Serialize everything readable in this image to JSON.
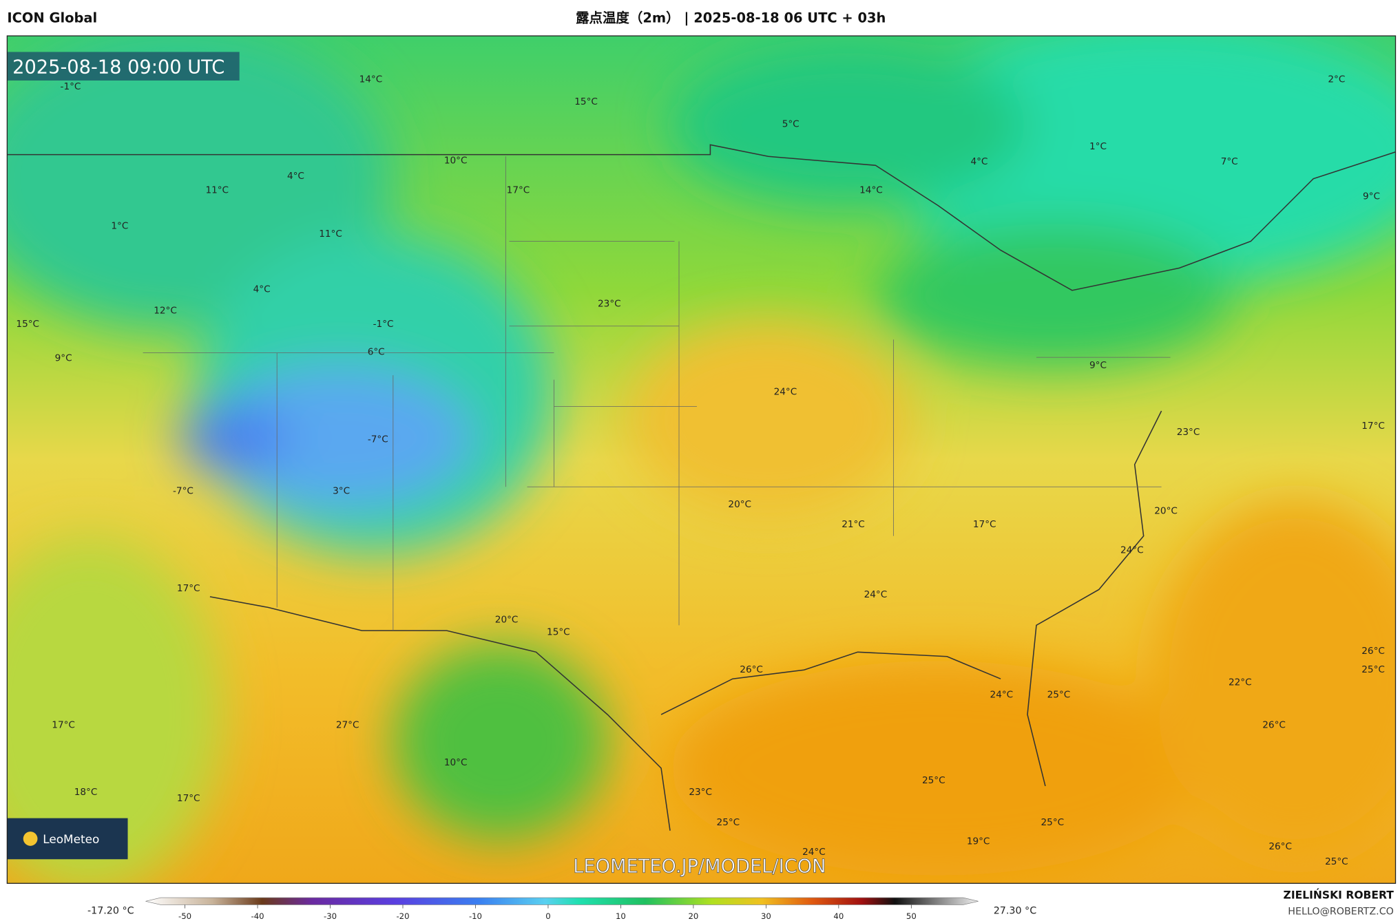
{
  "header": {
    "model": "ICON Global",
    "title": "露点温度（2m） | 2025-08-18 06 UTC + 03h"
  },
  "map": {
    "valid_time": "2025-08-18 09:00 UTC",
    "watermark": "LEOMETEO.JP/MODEL/ICON",
    "logo": "LeoMeteo",
    "labels": [
      "-1°C",
      "14°C",
      "15°C",
      "5°C",
      "2°C",
      "1°C",
      "4°C",
      "7°C",
      "9°C",
      "14°C",
      "10°C",
      "17°C",
      "4°C",
      "11°C",
      "1°C",
      "11°C",
      "4°C",
      "12°C",
      "-1°C",
      "6°C",
      "15°C",
      "9°C",
      "23°C",
      "24°C",
      "9°C",
      "17°C",
      "23°C",
      "-7°C",
      "3°C",
      "-7°C",
      "20°C",
      "21°C",
      "17°C",
      "20°C",
      "24°C",
      "17°C",
      "20°C",
      "15°C",
      "24°C",
      "26°C",
      "24°C",
      "25°C",
      "22°C",
      "26°C",
      "25°C",
      "17°C",
      "27°C",
      "26°C",
      "10°C",
      "25°C",
      "18°C",
      "17°C",
      "23°C",
      "25°C",
      "25°C",
      "24°C",
      "19°C",
      "26°C",
      "25°C"
    ]
  },
  "colorbar": {
    "min_label": "-17.20 °C",
    "max_label": "27.30 °C",
    "ticks": [
      -50,
      -40,
      -30,
      -20,
      -10,
      0,
      10,
      20,
      30,
      40,
      50
    ]
  },
  "credit": {
    "name": "ZIELIŃSKI ROBERT",
    "email": "HELLO@ROBERTZ.CO"
  }
}
